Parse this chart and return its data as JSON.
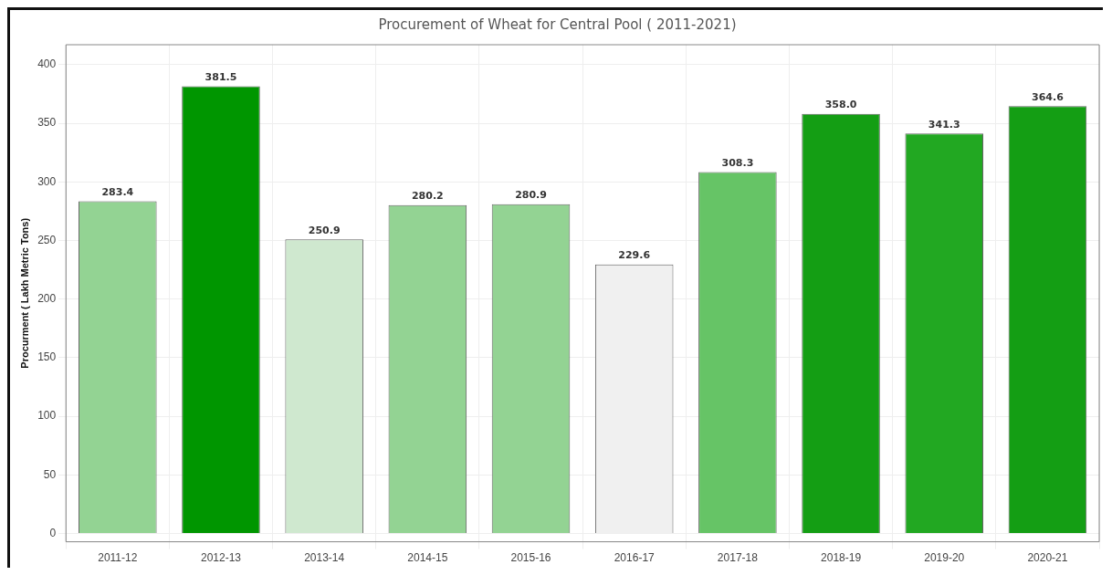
{
  "chart_data": {
    "type": "bar",
    "title": "Procurement of Wheat for Central Pool ( 2011-2021)",
    "ylabel": "Procurment ( Lakh Metric Tons)",
    "categories": [
      "2011-12",
      "2012-13",
      "2013-14",
      "2014-15",
      "2015-16",
      "2016-17",
      "2017-18",
      "2018-19",
      "2019-20",
      "2020-21"
    ],
    "values": [
      283.4,
      381.5,
      250.9,
      280.2,
      280.9,
      229.6,
      308.3,
      358.0,
      341.3,
      364.6
    ],
    "value_labels": [
      "283.4",
      "381.5",
      "250.9",
      "280.2",
      "280.9",
      "229.6",
      "308.3",
      "358.0",
      "341.3",
      "364.6"
    ],
    "colors": [
      "#93d393",
      "#009600",
      "#cfe8cf",
      "#93d393",
      "#93d393",
      "#f0f0f0",
      "#66c466",
      "#149e14",
      "#22a822",
      "#149e14"
    ],
    "ylim": [
      -7,
      417
    ],
    "yticks": [
      0,
      50,
      100,
      150,
      200,
      250,
      300,
      350,
      400
    ],
    "grid": true,
    "legend": false
  }
}
